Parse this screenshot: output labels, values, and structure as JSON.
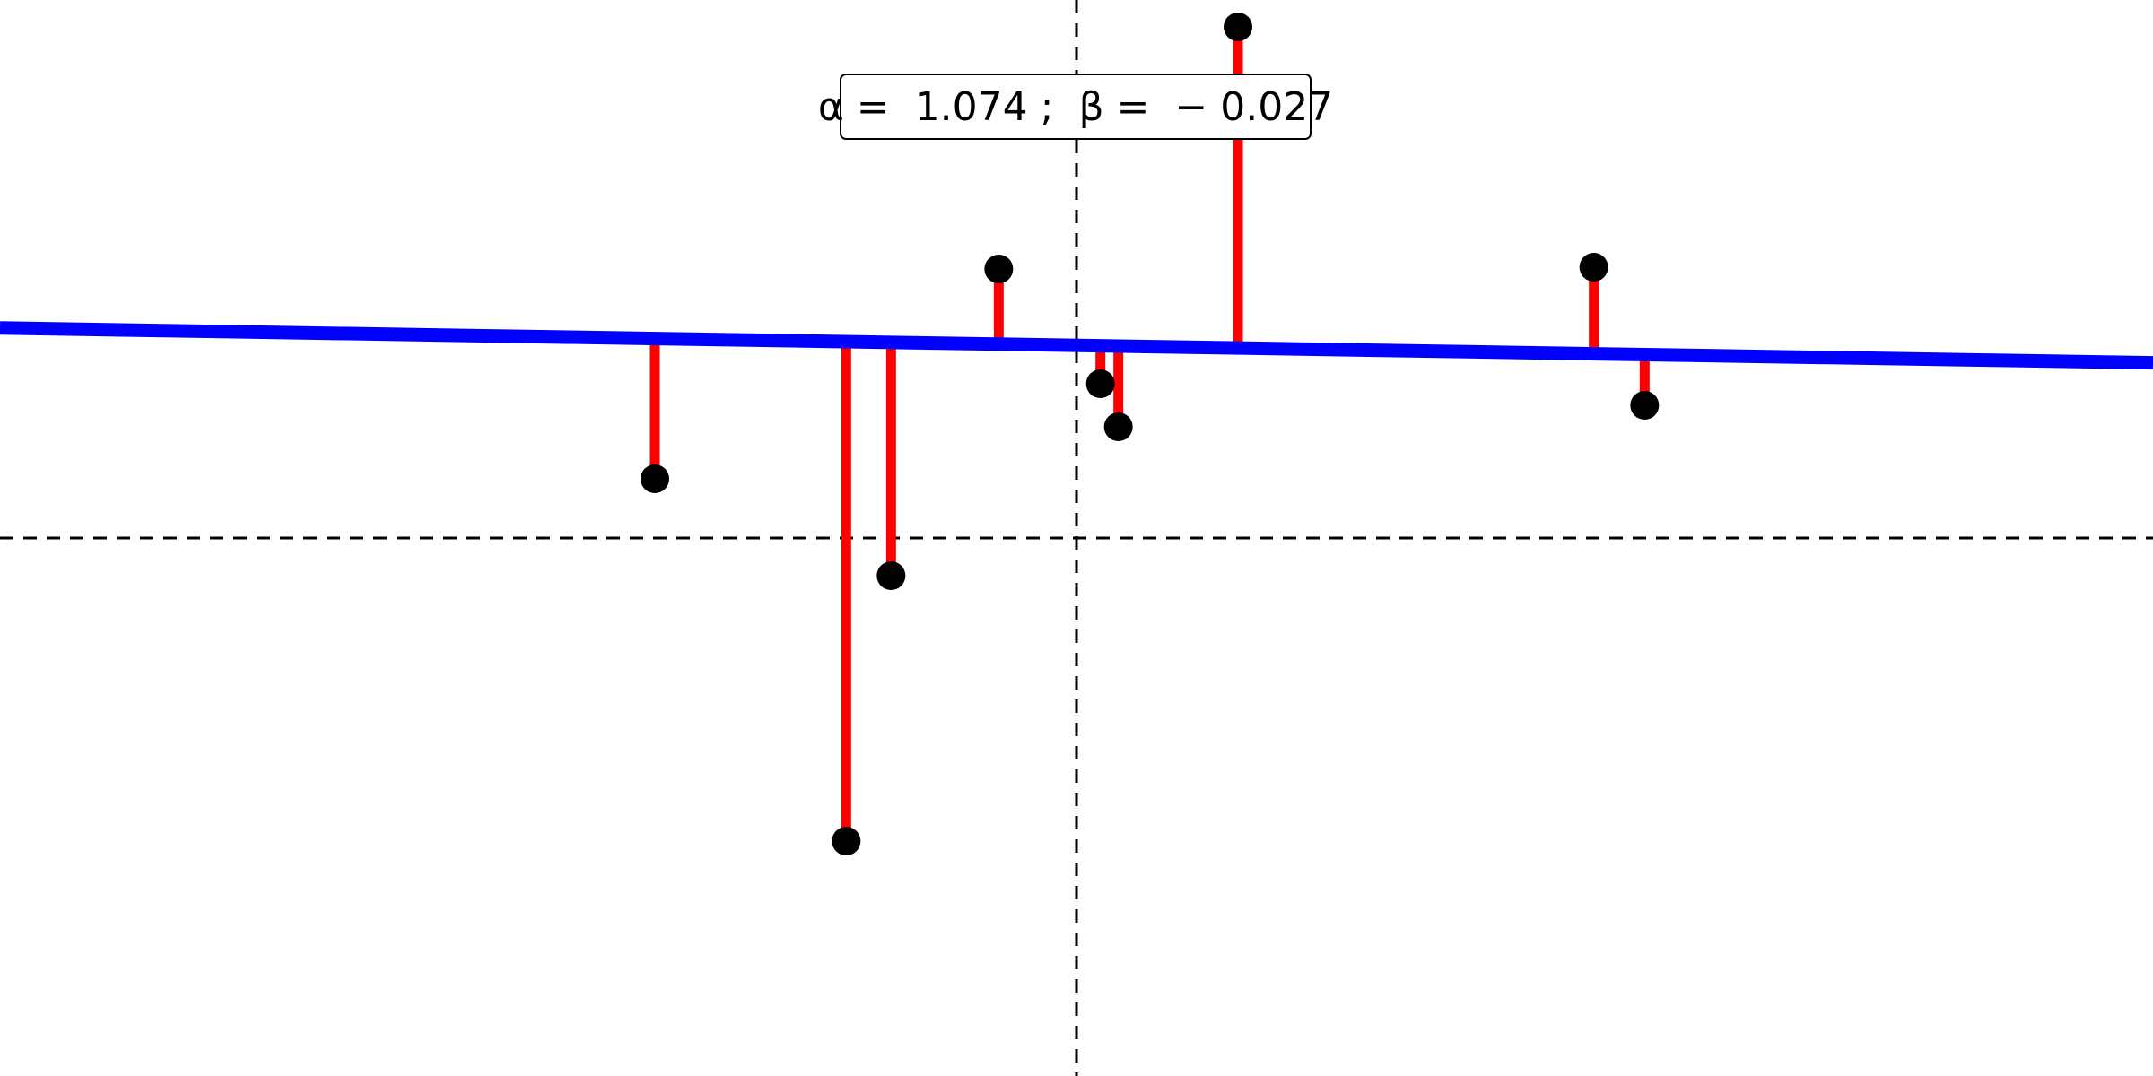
{
  "chart_data": {
    "type": "scatter",
    "annotation": {
      "alpha_label": "α =",
      "alpha_value": "1.074",
      "separator": ";",
      "beta_label": "β =",
      "beta_value": "− 0.027"
    },
    "fit": {
      "intercept": 1.074,
      "slope": -0.027
    },
    "points": [
      {
        "x": -1.41,
        "y": 0.33
      },
      {
        "x": -0.77,
        "y": -1.69
      },
      {
        "x": -0.62,
        "y": -0.21
      },
      {
        "x": -0.26,
        "y": 1.5
      },
      {
        "x": 0.08,
        "y": 0.86
      },
      {
        "x": 0.14,
        "y": 0.62
      },
      {
        "x": 0.54,
        "y": 2.85
      },
      {
        "x": 1.73,
        "y": 1.51
      },
      {
        "x": 1.9,
        "y": 0.74
      }
    ],
    "reference_lines": {
      "x": 0,
      "y": 0
    },
    "xlim": [
      -3.6,
      3.6
    ],
    "ylim": [
      -3.0,
      3.0
    ],
    "grid": false,
    "colors": {
      "fit_line": "#0000ff",
      "residuals": "#ff0000",
      "points": "#000000",
      "reference_lines": "#000000"
    }
  }
}
